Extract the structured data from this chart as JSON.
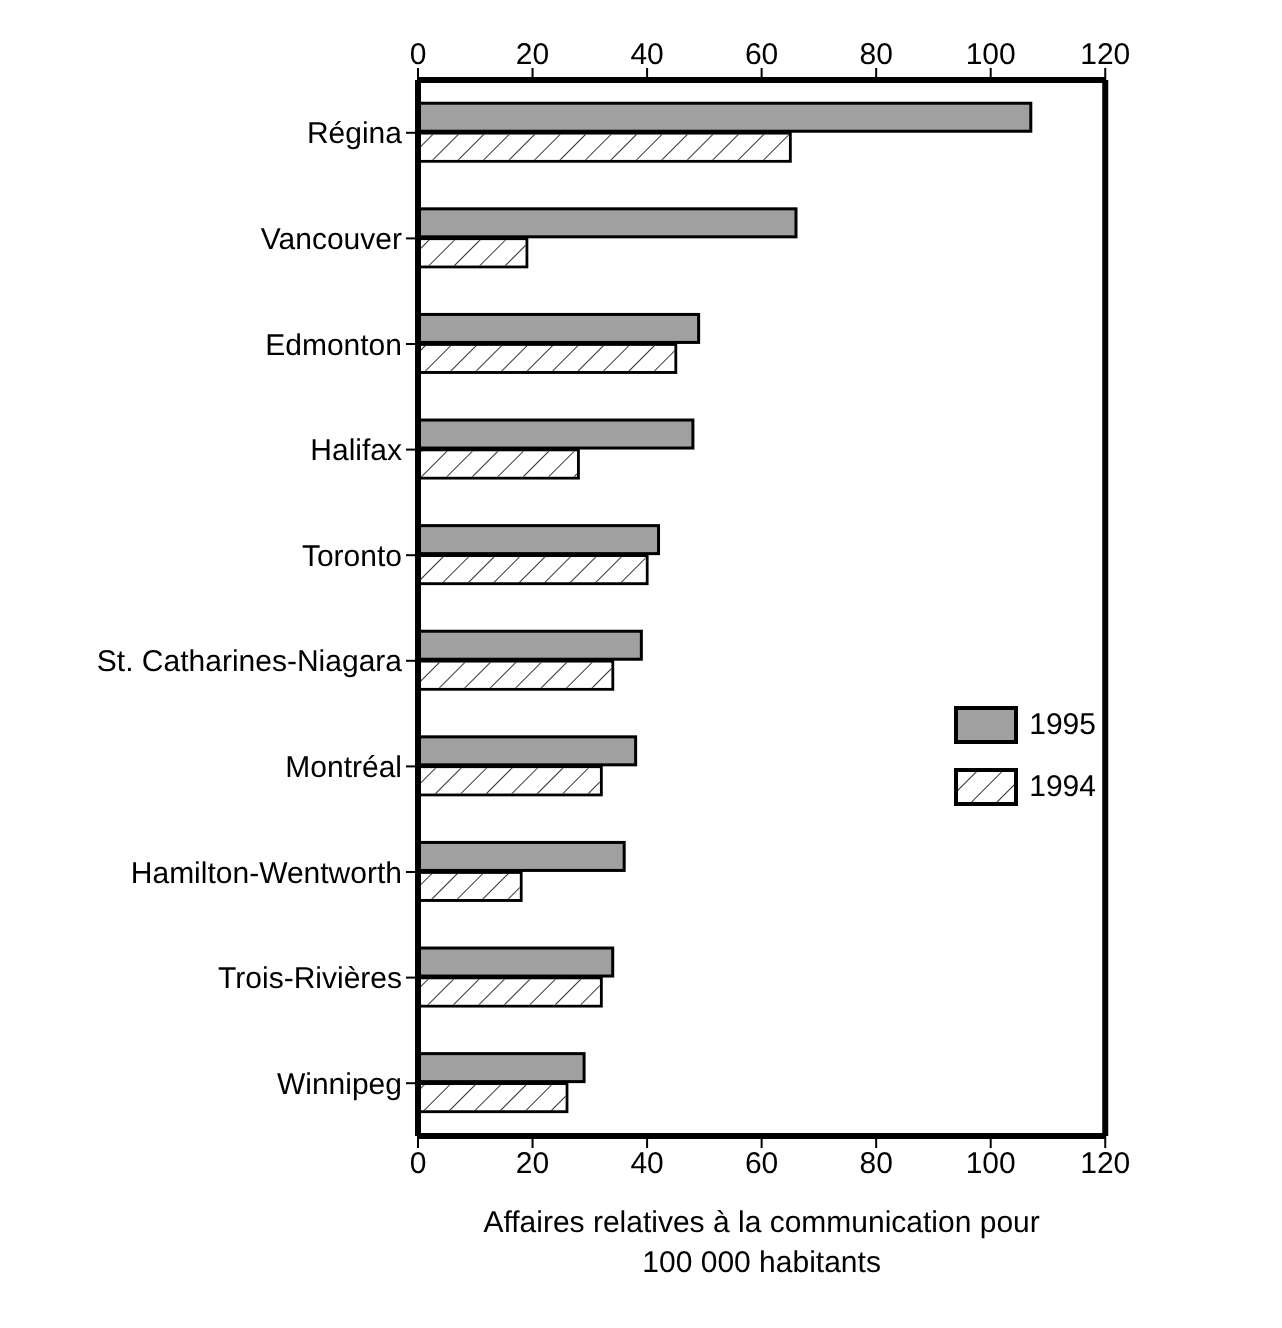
{
  "chart_data": {
    "type": "bar",
    "orientation": "horizontal",
    "xlabel": "Affaires relatives à la communication pour 100 000 habitants",
    "categories": [
      "Régina",
      "Vancouver",
      "Edmonton",
      "Halifax",
      "Toronto",
      "St. Catharines-Niagara",
      "Montréal",
      "Hamilton-Wentworth",
      "Trois-Rivières",
      "Winnipeg"
    ],
    "series": [
      {
        "name": "1995",
        "color": "#a0a0a0",
        "values": [
          107,
          66,
          49,
          48,
          42,
          39,
          38,
          36,
          34,
          29
        ]
      },
      {
        "name": "1994",
        "color": "#ffffff",
        "values": [
          65,
          19,
          45,
          28,
          40,
          34,
          32,
          18,
          32,
          26
        ]
      }
    ],
    "xlim": [
      0,
      120
    ],
    "xticks": [
      0,
      20,
      40,
      60,
      80,
      100,
      120
    ],
    "x2lim": [
      0,
      120
    ],
    "x2ticks": [
      0,
      20,
      40,
      60,
      80,
      100,
      120
    ],
    "legend": "right",
    "grid": false
  }
}
